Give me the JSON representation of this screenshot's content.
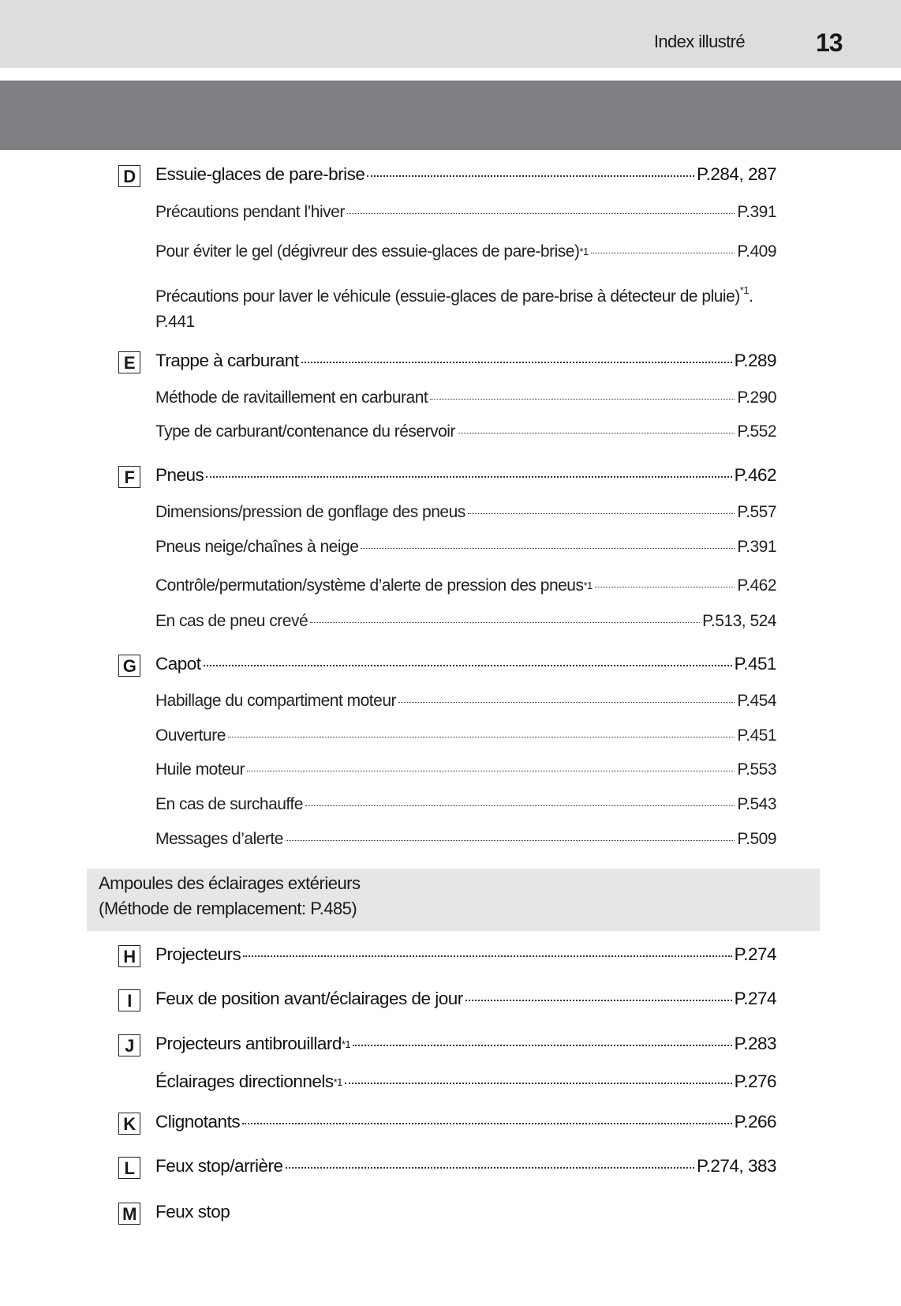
{
  "header": {
    "section_title": "Index illustré",
    "page_number": "13"
  },
  "items": [
    {
      "letter": "D",
      "label": "Essuie-glaces de pare-brise",
      "page": "P.284, 287",
      "level": "main",
      "sup": ""
    },
    {
      "label": "Précautions pendant l’hiver",
      "page": "P.391",
      "level": "sub",
      "sup": ""
    },
    {
      "label": "Pour éviter le gel (dégivreur des essuie-glaces de pare-brise)",
      "page": "P.409",
      "level": "sub",
      "sup": "*1"
    },
    {
      "label": "Précautions pour laver le véhicule (essuie-glaces de pare-brise à détecteur de pluie)",
      "page": "P.441",
      "level": "wrap",
      "sup": "*1",
      "suffix": "."
    },
    {
      "letter": "E",
      "label": "Trappe à carburant",
      "page": "P.289",
      "level": "main",
      "sup": ""
    },
    {
      "label": "Méthode de ravitaillement en carburant",
      "page": "P.290",
      "level": "sub",
      "sup": ""
    },
    {
      "label": "Type de carburant/contenance du réservoir",
      "page": "P.552",
      "level": "sub",
      "sup": ""
    },
    {
      "letter": "F",
      "label": "Pneus",
      "page": "P.462",
      "level": "main",
      "sup": ""
    },
    {
      "label": "Dimensions/pression de gonflage des pneus",
      "page": "P.557",
      "level": "sub",
      "sup": ""
    },
    {
      "label": "Pneus neige/chaînes à neige",
      "page": "P.391",
      "level": "sub",
      "sup": ""
    },
    {
      "label": "Contrôle/permutation/système d’alerte de pression des pneus",
      "page": "P.462",
      "level": "sub",
      "sup": "*1"
    },
    {
      "label": "En cas de pneu crevé",
      "page": "P.513, 524",
      "level": "sub",
      "sup": ""
    },
    {
      "letter": "G",
      "label": "Capot",
      "page": "P.451",
      "level": "main",
      "sup": ""
    },
    {
      "label": "Habillage du compartiment moteur",
      "page": "P.454",
      "level": "sub",
      "sup": ""
    },
    {
      "label": "Ouverture",
      "page": "P.451",
      "level": "sub",
      "sup": ""
    },
    {
      "label": "Huile moteur",
      "page": "P.553",
      "level": "sub",
      "sup": ""
    },
    {
      "label": "En cas de surchauffe",
      "page": "P.543",
      "level": "sub",
      "sup": ""
    },
    {
      "label": "Messages d’alerte",
      "page": "P.509",
      "level": "sub",
      "sup": ""
    },
    {
      "letter": "H",
      "label": "Projecteurs",
      "page": "P.274",
      "level": "main",
      "sup": ""
    },
    {
      "letter": "I",
      "label": "Feux de position avant/éclairages de jour",
      "page": "P.274",
      "level": "main",
      "sup": ""
    },
    {
      "letter": "J",
      "label": "Projecteurs antibrouillard",
      "page": "P.283",
      "level": "main",
      "sup": "*1"
    },
    {
      "label": "Éclairages directionnels",
      "page": "P.276",
      "level": "main",
      "sup": "*1"
    },
    {
      "letter": "K",
      "label": "Clignotants",
      "page": "P.266",
      "level": "main",
      "sup": ""
    },
    {
      "letter": "L",
      "label": "Feux stop/arrière",
      "page": "P.274, 383",
      "level": "main",
      "sup": ""
    },
    {
      "letter": "M",
      "label": "Feux stop",
      "page": "",
      "level": "main",
      "sup": ""
    }
  ],
  "exterior_lights_box": {
    "title": "Ampoules des éclairages extérieurs",
    "note": "(Méthode de remplacement: P.485)"
  }
}
